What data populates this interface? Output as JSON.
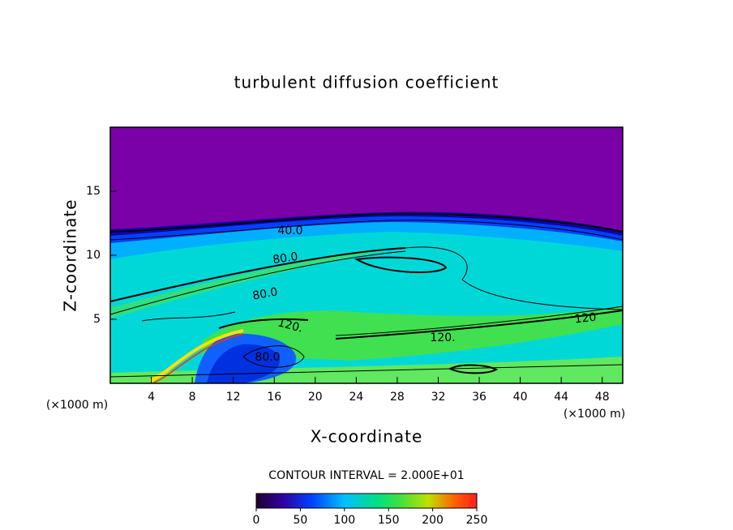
{
  "chart_data": {
    "type": "contour",
    "title": "turbulent diffusion coefficient",
    "x_label": "X-coordinate",
    "y_label": "Z-coordinate",
    "x_unit": "(×1000 m)",
    "y_unit": "(×1000 m)",
    "xlim": [
      0,
      50
    ],
    "ylim": [
      0,
      20
    ],
    "xticks": [
      4,
      8,
      12,
      16,
      20,
      24,
      28,
      32,
      36,
      40,
      44,
      48
    ],
    "yticks": [
      5,
      10,
      15
    ],
    "contour_labels": [
      "40.0",
      "80.0",
      "80.0",
      "120.",
      "120.",
      "120",
      "80.0"
    ],
    "contour_interval": "CONTOUR INTERVAL = 2.000E+01",
    "clim": [
      0,
      250
    ],
    "colorbar_ticks": [
      0,
      50,
      100,
      150,
      200,
      250
    ]
  }
}
